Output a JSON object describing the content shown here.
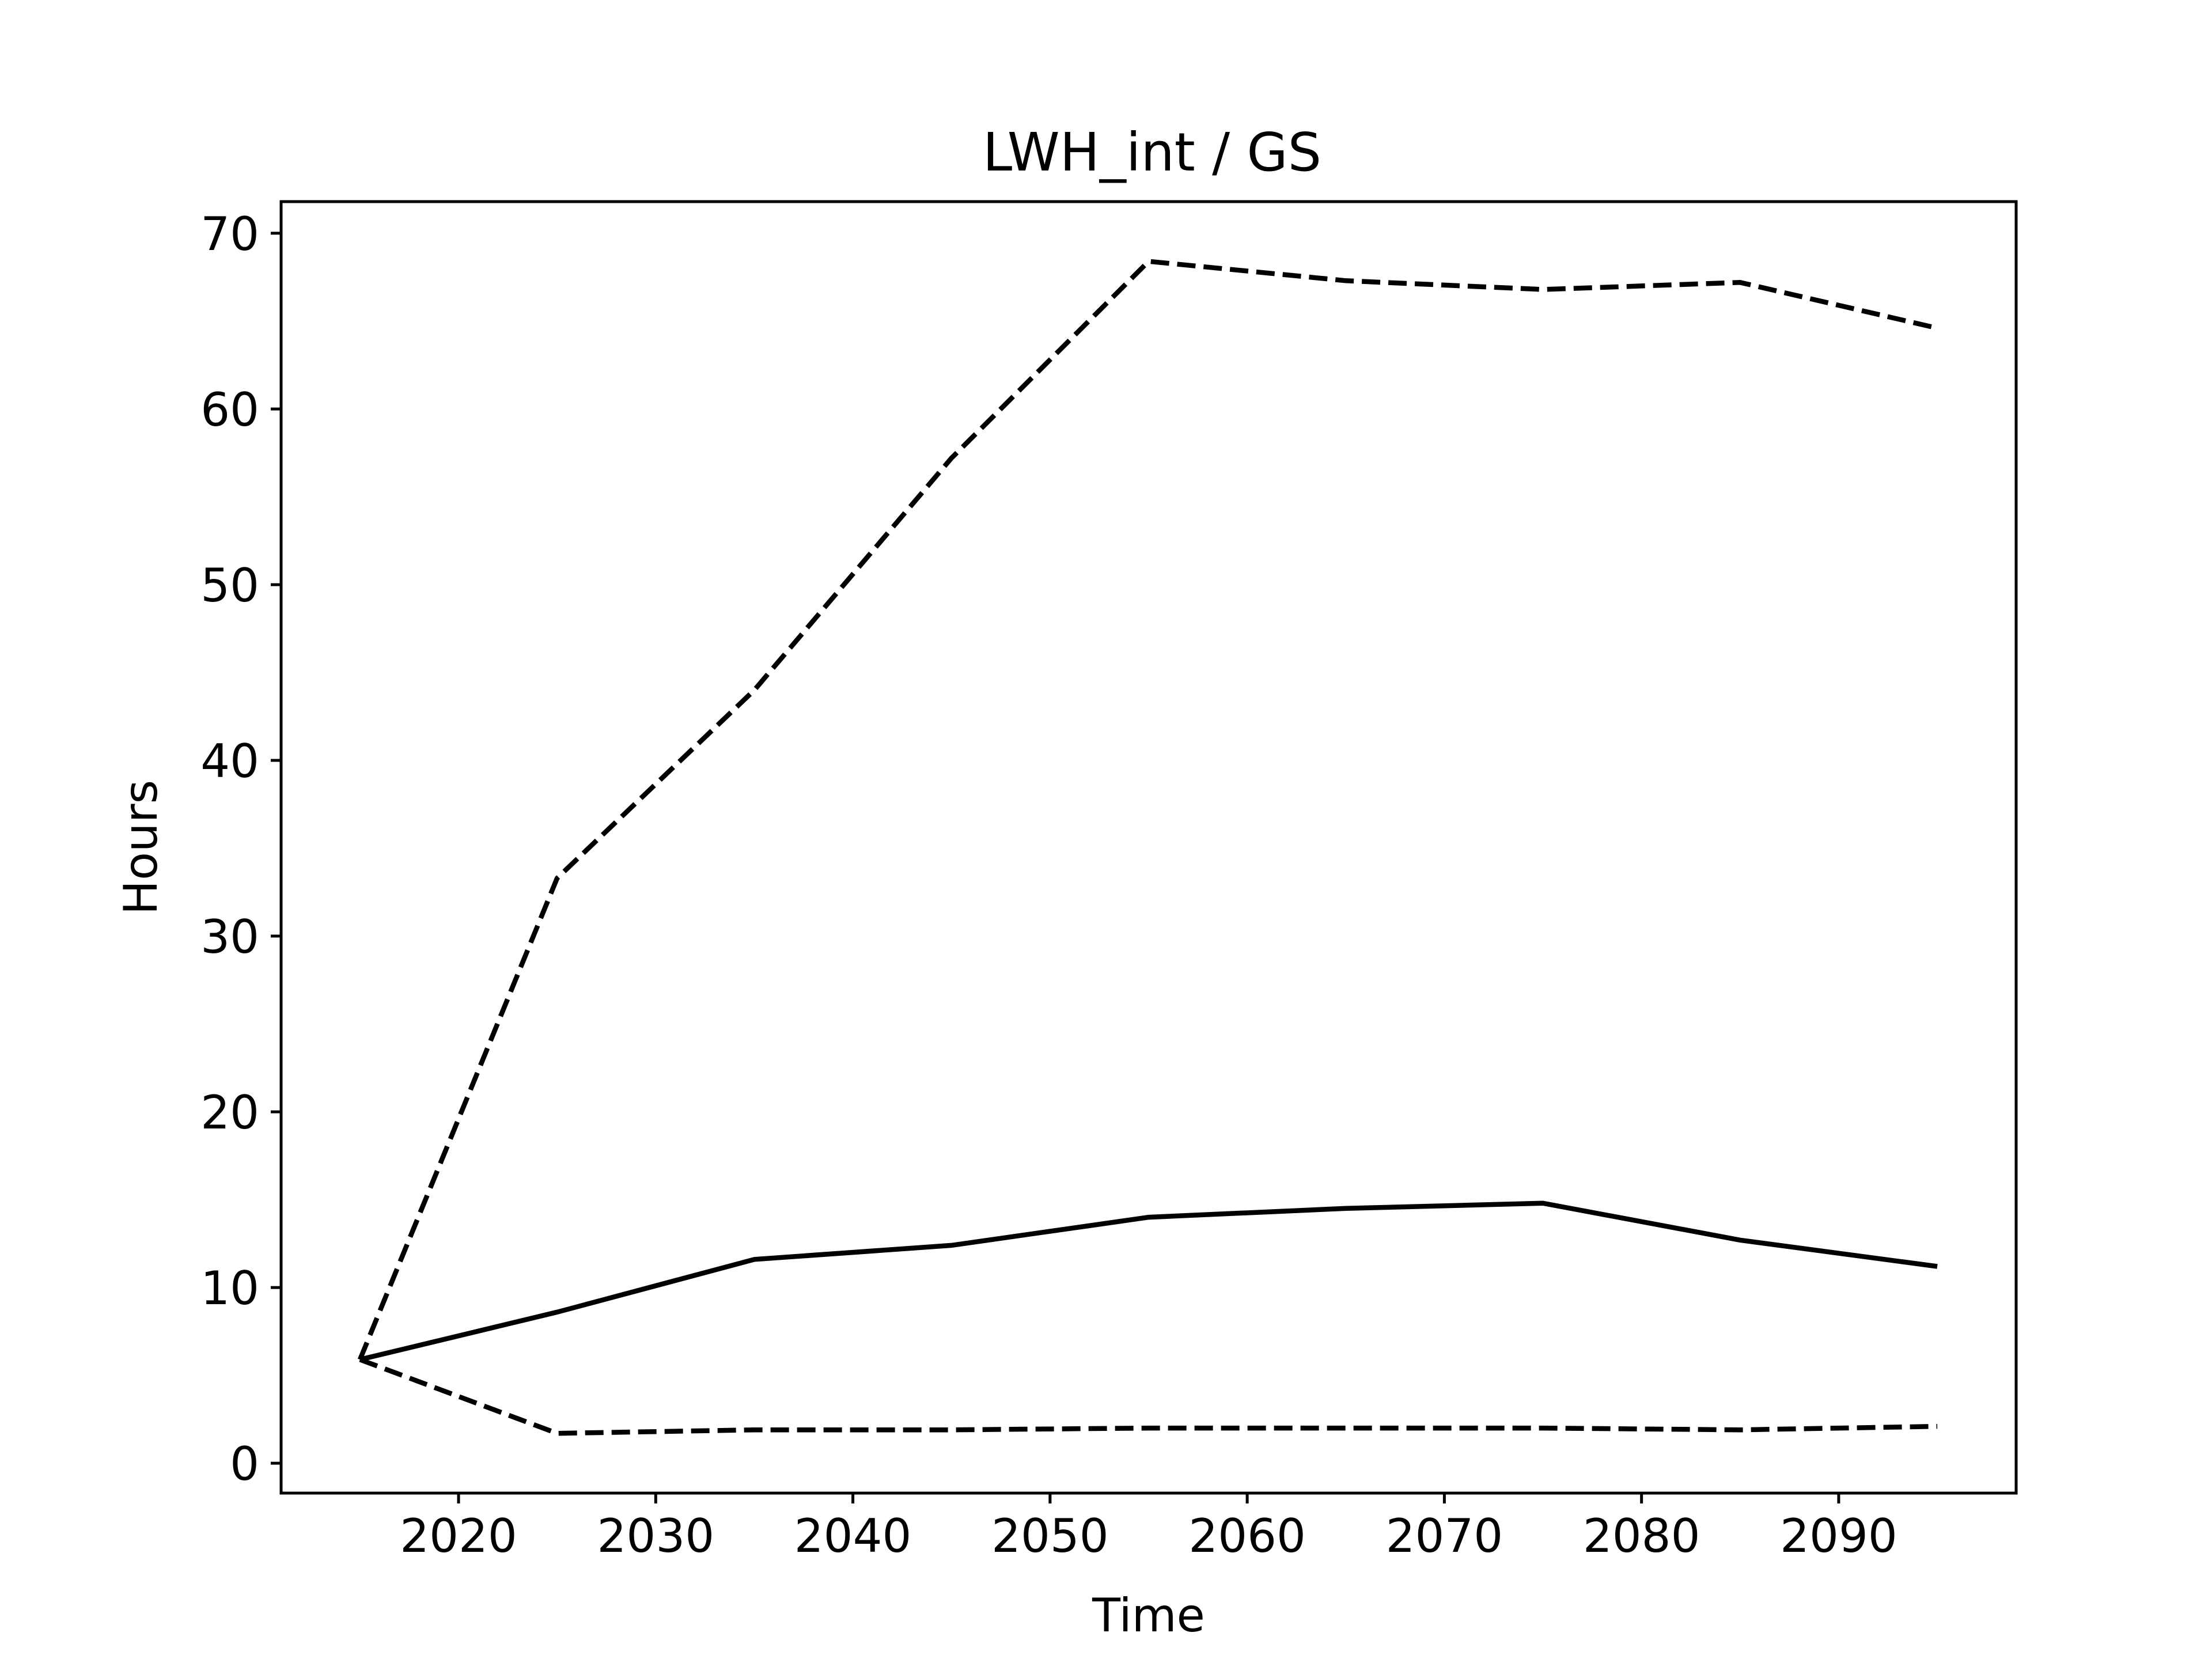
{
  "chart_data": {
    "type": "line",
    "title": "LWH_int / GS",
    "xlabel": "Time",
    "ylabel": "Hours",
    "xlim": [
      2011,
      2099
    ],
    "ylim": [
      -1.7,
      71.8
    ],
    "xticks": [
      2020,
      2030,
      2040,
      2050,
      2060,
      2070,
      2080,
      2090
    ],
    "yticks": [
      0,
      10,
      20,
      30,
      40,
      50,
      60,
      70
    ],
    "grid": false,
    "legend": null,
    "x": [
      2015,
      2025,
      2035,
      2045,
      2055,
      2065,
      2075,
      2085,
      2095
    ],
    "series": [
      {
        "style": "dashed",
        "color": "#000000",
        "values": [
          5.9,
          33.3,
          44.0,
          57.2,
          68.4,
          67.3,
          66.8,
          67.2,
          64.6
        ]
      },
      {
        "style": "solid",
        "color": "#000000",
        "values": [
          5.9,
          8.6,
          11.6,
          12.4,
          14.0,
          14.5,
          14.8,
          12.7,
          11.2
        ]
      },
      {
        "style": "dashed",
        "color": "#000000",
        "values": [
          5.9,
          1.7,
          1.9,
          1.9,
          2.0,
          2.0,
          2.0,
          1.9,
          2.1
        ]
      }
    ]
  }
}
